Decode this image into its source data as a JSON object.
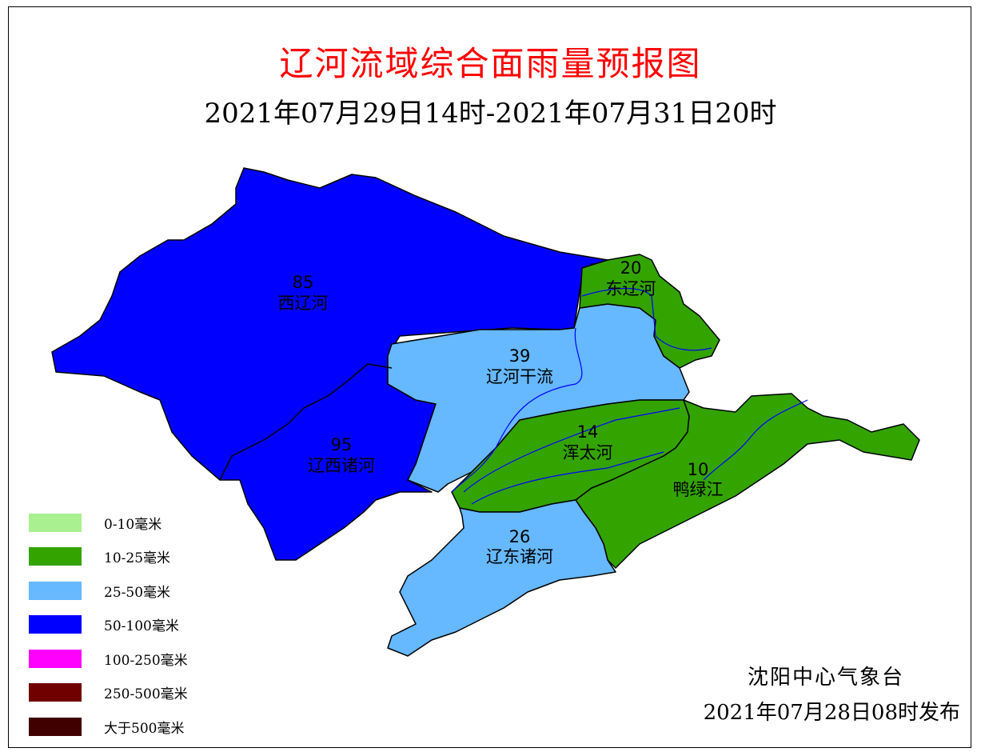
{
  "title": "辽河流域综合面雨量预报图",
  "subtitle": "2021年07月29日14时-2021年07月31日20时",
  "colors": {
    "title": "#ff0000",
    "river": "#0000ff",
    "boundary": "#000000"
  },
  "regions": [
    {
      "name": "西辽河",
      "value": "85",
      "color": "#0000ff"
    },
    {
      "name": "辽西诸河",
      "value": "95",
      "color": "#0000ff"
    },
    {
      "name": "辽河干流",
      "value": "39",
      "color": "#66b8ff"
    },
    {
      "name": "东辽河",
      "value": "20",
      "color": "#33a300"
    },
    {
      "name": "浑太河",
      "value": "14",
      "color": "#33a300"
    },
    {
      "name": "鸭绿江",
      "value": "10",
      "color": "#33a300"
    },
    {
      "name": "辽东诸河",
      "value": "26",
      "color": "#66b8ff"
    }
  ],
  "legend": [
    {
      "label": "0-10毫米",
      "color": "#a8f090"
    },
    {
      "label": "10-25毫米",
      "color": "#33a300"
    },
    {
      "label": "25-50毫米",
      "color": "#66b8ff"
    },
    {
      "label": "50-100毫米",
      "color": "#0000ff"
    },
    {
      "label": "100-250毫米",
      "color": "#ff00ff"
    },
    {
      "label": "250-500毫米",
      "color": "#700000"
    },
    {
      "label": "大于500毫米",
      "color": "#400000"
    }
  ],
  "issuer": "沈阳中心气象台",
  "issue_date": "2021年07月28日08时发布"
}
